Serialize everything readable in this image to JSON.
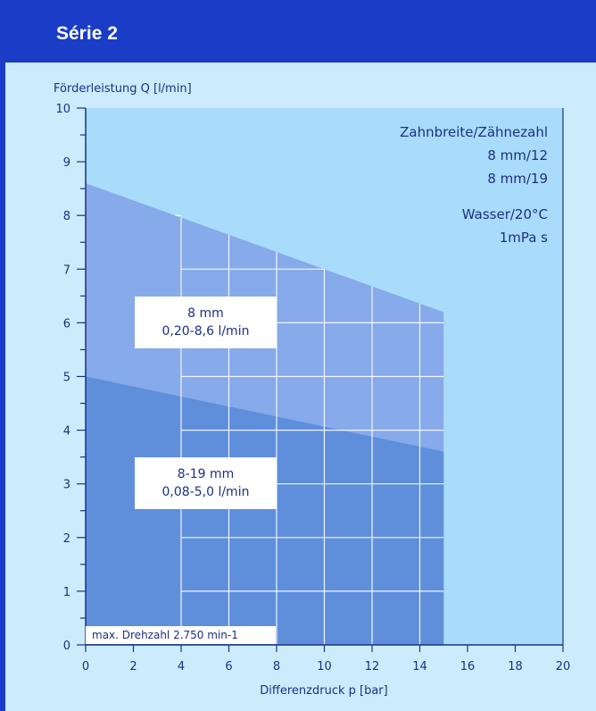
{
  "header": {
    "title": "Série 2"
  },
  "chart_data": {
    "type": "area",
    "ylabel": "Förderleistung Q [l/min]",
    "xlabel": "Differenzdruck p [bar]",
    "xlim": [
      0,
      20
    ],
    "ylim": [
      0,
      10
    ],
    "x_ticks": [
      "0",
      "2",
      "4",
      "6",
      "8",
      "10",
      "12",
      "14",
      "16",
      "18",
      "20"
    ],
    "y_ticks": [
      "0",
      "1",
      "2",
      "3",
      "4",
      "5",
      "6",
      "7",
      "8",
      "9",
      "10"
    ],
    "grid": true,
    "series": [
      {
        "name": "8 mm",
        "range_label": "0,20-8,6 l/min",
        "x": [
          0,
          15
        ],
        "y": [
          8.6,
          6.2
        ],
        "color": "#86aaea"
      },
      {
        "name": "8-19 mm",
        "range_label": "0,08-5,0 l/min",
        "x": [
          0,
          15
        ],
        "y": [
          5.0,
          3.6
        ],
        "color": "#5f8fdb"
      }
    ],
    "annotations": {
      "heading": "Zahnbreite/Zähnezahl",
      "line1": "8 mm/12",
      "line2": "8 mm/19",
      "medium": "Wasser/20°C",
      "viscosity": "1mPa s",
      "max_speed": "max. Drehzahl 2.750 min-1"
    },
    "colors": {
      "plot_background": "#a9dbfb",
      "panel_background": "#ccebfd",
      "axis": "#1d2f86"
    }
  }
}
